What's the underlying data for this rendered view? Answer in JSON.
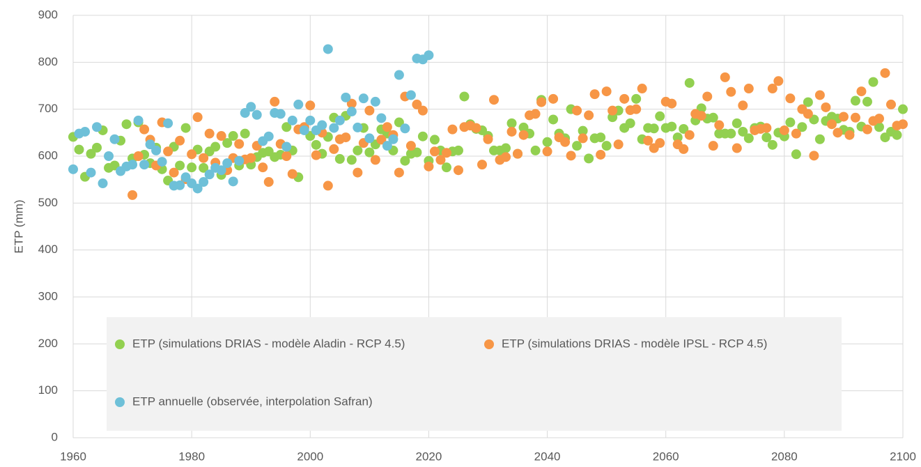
{
  "chart_data": {
    "type": "scatter",
    "ylabel": "ETP (mm)",
    "xlim": [
      1960,
      2100
    ],
    "xticks": [
      1960,
      1980,
      2000,
      2020,
      2040,
      2060,
      2080,
      2100
    ],
    "ylim": [
      0,
      900
    ],
    "yticks": [
      0,
      100,
      200,
      300,
      400,
      500,
      600,
      700,
      800,
      900
    ],
    "grid": true,
    "legend": "lower center",
    "series": [
      {
        "name": "ETP (simulations DRIAS - modèle Aladin - RCP 4.5)",
        "color": "#92d050",
        "x": [
          1960,
          1961,
          1962,
          1963,
          1964,
          1965,
          1966,
          1967,
          1968,
          1969,
          1970,
          1971,
          1972,
          1973,
          1974,
          1975,
          1976,
          1977,
          1978,
          1979,
          1980,
          1981,
          1982,
          1983,
          1984,
          1985,
          1986,
          1987,
          1988,
          1989,
          1990,
          1991,
          1992,
          1993,
          1994,
          1995,
          1996,
          1997,
          1998,
          1999,
          2000,
          2001,
          2002,
          2003,
          2004,
          2005,
          2006,
          2007,
          2008,
          2009,
          2010,
          2011,
          2012,
          2013,
          2014,
          2015,
          2016,
          2017,
          2018,
          2019,
          2020,
          2021,
          2022,
          2023,
          2024,
          2025,
          2026,
          2027,
          2028,
          2029,
          2030,
          2031,
          2032,
          2033,
          2034,
          2035,
          2036,
          2037,
          2038,
          2039,
          2040,
          2041,
          2042,
          2043,
          2044,
          2045,
          2046,
          2047,
          2048,
          2049,
          2050,
          2051,
          2052,
          2053,
          2054,
          2055,
          2056,
          2057,
          2058,
          2059,
          2060,
          2061,
          2062,
          2063,
          2064,
          2065,
          2066,
          2067,
          2068,
          2069,
          2070,
          2071,
          2072,
          2073,
          2074,
          2075,
          2076,
          2077,
          2078,
          2079,
          2080,
          2081,
          2082,
          2083,
          2084,
          2085,
          2086,
          2087,
          2088,
          2089,
          2090,
          2091,
          2092,
          2093,
          2094,
          2095,
          2096,
          2097,
          2098,
          2099,
          2100
        ],
        "values": [
          641,
          614,
          556,
          605,
          618,
          655,
          575,
          580,
          633,
          668,
          595,
          672,
          603,
          585,
          618,
          572,
          548,
          620,
          580,
          660,
          576,
          614,
          575,
          610,
          620,
          560,
          628,
          643,
          580,
          648,
          582,
          598,
          607,
          610,
          598,
          603,
          662,
          612,
          555,
          660,
          643,
          624,
          605,
          641,
          682,
          594,
          686,
          592,
          612,
          660,
          608,
          625,
          657,
          648,
          612,
          672,
          590,
          605,
          608,
          642,
          590,
          635,
          612,
          576,
          610,
          612,
          727,
          668,
          658,
          655,
          643,
          612,
          612,
          617,
          670,
          605,
          661,
          648,
          612,
          720,
          630,
          678,
          648,
          638,
          700,
          622,
          654,
          595,
          638,
          640,
          622,
          683,
          697,
          660,
          670,
          722,
          636,
          660,
          659,
          685,
          660,
          663,
          640,
          658,
          756,
          676,
          702,
          680,
          682,
          648,
          648,
          648,
          670,
          652,
          638,
          660,
          663,
          640,
          624,
          650,
          642,
          672,
          604,
          662,
          715,
          678,
          636,
          675,
          684,
          680,
          656,
          652,
          718,
          663,
          716,
          758,
          662,
          640,
          652,
          645,
          700
        ]
      },
      {
        "name": "ETP (simulations DRIAS - modèle IPSL - RCP 4.5)",
        "color": "#f79646",
        "x": [
          1970,
          1971,
          1972,
          1973,
          1974,
          1975,
          1976,
          1977,
          1978,
          1979,
          1980,
          1981,
          1982,
          1983,
          1984,
          1985,
          1986,
          1987,
          1988,
          1989,
          1990,
          1991,
          1992,
          1993,
          1994,
          1995,
          1996,
          1997,
          1998,
          1999,
          2000,
          2001,
          2002,
          2003,
          2004,
          2005,
          2006,
          2007,
          2008,
          2009,
          2010,
          2011,
          2012,
          2013,
          2014,
          2015,
          2016,
          2017,
          2018,
          2019,
          2020,
          2021,
          2022,
          2023,
          2024,
          2025,
          2026,
          2027,
          2028,
          2029,
          2030,
          2031,
          2032,
          2033,
          2034,
          2035,
          2036,
          2037,
          2038,
          2039,
          2040,
          2041,
          2042,
          2043,
          2044,
          2045,
          2046,
          2047,
          2048,
          2049,
          2050,
          2051,
          2052,
          2053,
          2054,
          2055,
          2056,
          2057,
          2058,
          2059,
          2060,
          2061,
          2062,
          2063,
          2064,
          2065,
          2066,
          2067,
          2068,
          2069,
          2070,
          2071,
          2072,
          2073,
          2074,
          2075,
          2076,
          2077,
          2078,
          2079,
          2080,
          2081,
          2082,
          2083,
          2084,
          2085,
          2086,
          2087,
          2088,
          2089,
          2090,
          2091,
          2092,
          2093,
          2094,
          2095,
          2096,
          2097,
          2098,
          2099,
          2100
        ],
        "values": [
          517,
          600,
          657,
          635,
          580,
          672,
          610,
          565,
          633,
          551,
          604,
          683,
          596,
          648,
          586,
          643,
          570,
          596,
          626,
          593,
          596,
          622,
          576,
          545,
          716,
          626,
          600,
          562,
          657,
          662,
          708,
          602,
          650,
          537,
          615,
          636,
          640,
          712,
          565,
          628,
          697,
          592,
          635,
          662,
          645,
          565,
          727,
          622,
          710,
          697,
          578,
          610,
          592,
          607,
          657,
          570,
          662,
          665,
          660,
          582,
          636,
          720,
          592,
          598,
          652,
          605,
          645,
          687,
          690,
          715,
          610,
          722,
          640,
          630,
          601,
          697,
          638,
          687,
          732,
          603,
          738,
          697,
          625,
          722,
          698,
          700,
          744,
          633,
          617,
          628,
          716,
          712,
          625,
          615,
          645,
          690,
          686,
          727,
          622,
          666,
          768,
          737,
          617,
          708,
          744,
          655,
          658,
          660,
          744,
          760,
          655,
          723,
          648,
          700,
          690,
          601,
          730,
          704,
          668,
          650,
          684,
          645,
          682,
          738,
          657,
          675,
          680,
          777,
          710,
          665,
          668
        ]
      },
      {
        "name": "ETP annuelle (observée, interpolation Safran)",
        "color": "#6ec0d8",
        "x": [
          1960,
          1961,
          1962,
          1963,
          1964,
          1965,
          1966,
          1967,
          1968,
          1969,
          1970,
          1971,
          1972,
          1973,
          1974,
          1975,
          1976,
          1977,
          1978,
          1979,
          1980,
          1981,
          1982,
          1983,
          1984,
          1985,
          1986,
          1987,
          1988,
          1989,
          1990,
          1991,
          1992,
          1993,
          1994,
          1995,
          1996,
          1997,
          1998,
          1999,
          2000,
          2001,
          2002,
          2003,
          2004,
          2005,
          2006,
          2007,
          2008,
          2009,
          2010,
          2011,
          2012,
          2013,
          2014,
          2015,
          2016,
          2017,
          2018,
          2019,
          2020
        ],
        "values": [
          572,
          648,
          652,
          565,
          662,
          542,
          600,
          636,
          568,
          578,
          582,
          676,
          582,
          625,
          612,
          588,
          670,
          537,
          538,
          555,
          542,
          531,
          545,
          561,
          575,
          570,
          585,
          546,
          590,
          692,
          705,
          688,
          632,
          642,
          692,
          690,
          620,
          676,
          710,
          655,
          676,
          655,
          666,
          828,
          660,
          676,
          725,
          695,
          661,
          723,
          638,
          716,
          681,
          622,
          636,
          773,
          659,
          730,
          808,
          806,
          815
        ]
      }
    ]
  }
}
